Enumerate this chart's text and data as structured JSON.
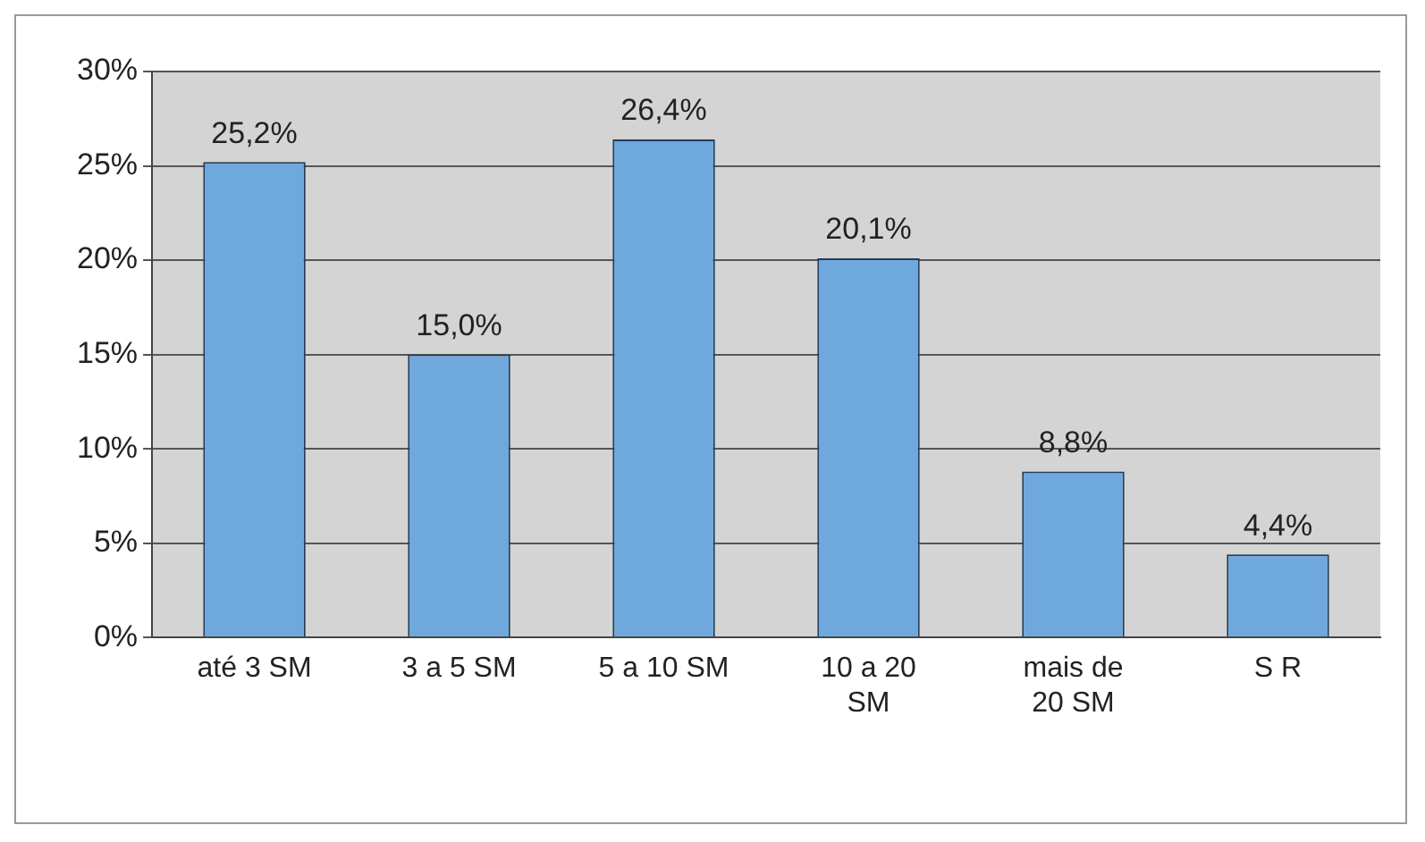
{
  "chart_data": {
    "type": "bar",
    "categories": [
      "até 3 SM",
      "3 a 5 SM",
      "5 a 10 SM",
      "10 a 20 SM",
      "mais de 20 SM",
      "S R"
    ],
    "values": [
      25.2,
      15.0,
      26.4,
      20.1,
      8.8,
      4.4
    ],
    "value_labels": [
      "25,2%",
      "15,0%",
      "26,4%",
      "20,1%",
      "8,8%",
      "4,4%"
    ],
    "color": "#6fa8dc",
    "ylim": [
      0,
      30
    ],
    "yticks": [
      {
        "value": 0,
        "label": "0%"
      },
      {
        "value": 5,
        "label": "5%"
      },
      {
        "value": 10,
        "label": "10%"
      },
      {
        "value": 15,
        "label": "15%"
      },
      {
        "value": 20,
        "label": "20%"
      },
      {
        "value": 25,
        "label": "25%"
      },
      {
        "value": 30,
        "label": "30%"
      }
    ],
    "grid": "y",
    "legend": false
  }
}
